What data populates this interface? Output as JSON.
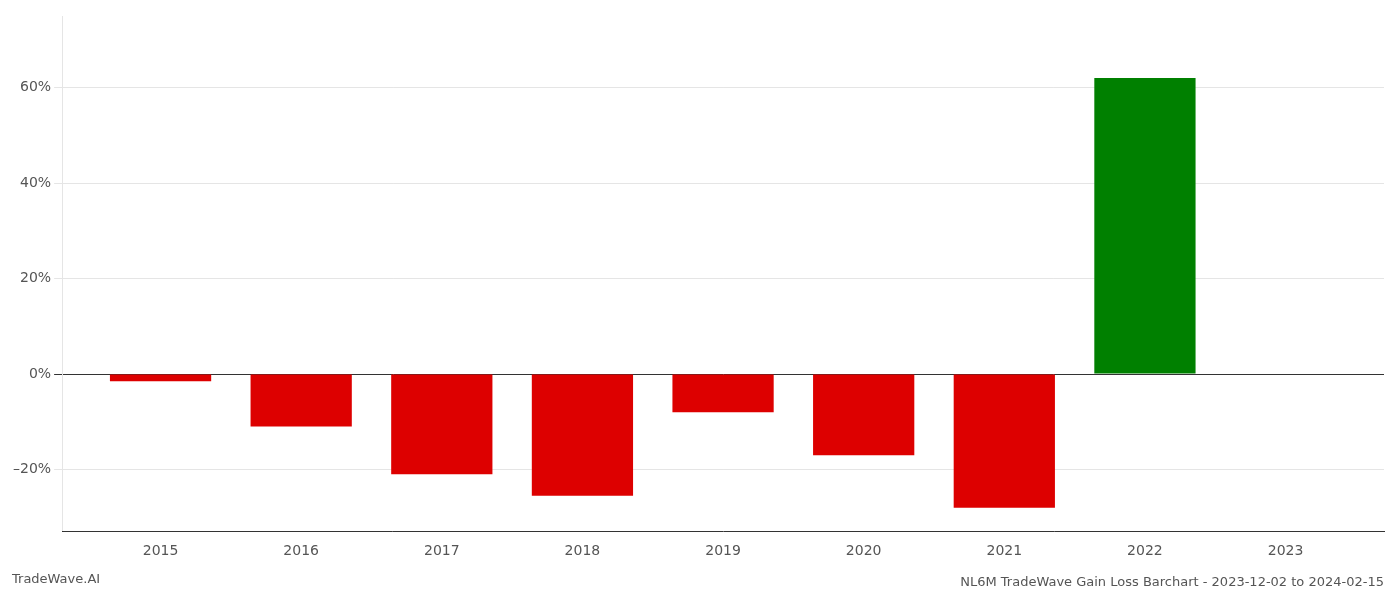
{
  "chart_data": {
    "type": "bar",
    "title": "NL6M TradeWave Gain Loss Barchart - 2023-12-02 to 2024-02-15",
    "annotations": [
      "TradeWave.AI"
    ],
    "x": [
      2015,
      2016,
      2017,
      2018,
      2019,
      2020,
      2021,
      2022
    ],
    "values": [
      -1.5,
      -11.0,
      -21.0,
      -25.5,
      -8.0,
      -17.0,
      -28.0,
      62.0
    ],
    "colors": [
      "#dd0000",
      "#dd0000",
      "#dd0000",
      "#dd0000",
      "#dd0000",
      "#dd0000",
      "#dd0000",
      "#008000"
    ],
    "xlim": [
      2014.3,
      2023.7
    ],
    "xticks": [
      2015,
      2016,
      2017,
      2018,
      2019,
      2020,
      2021,
      2022,
      2023
    ],
    "ylim": [
      -33,
      75
    ],
    "yticks": [
      {
        "value": -20,
        "label": "–20%"
      },
      {
        "value": 0,
        "label": "0%"
      },
      {
        "value": 20,
        "label": "20%"
      },
      {
        "value": 40,
        "label": "40%"
      },
      {
        "value": 60,
        "label": "60%"
      }
    ],
    "grid": true
  }
}
